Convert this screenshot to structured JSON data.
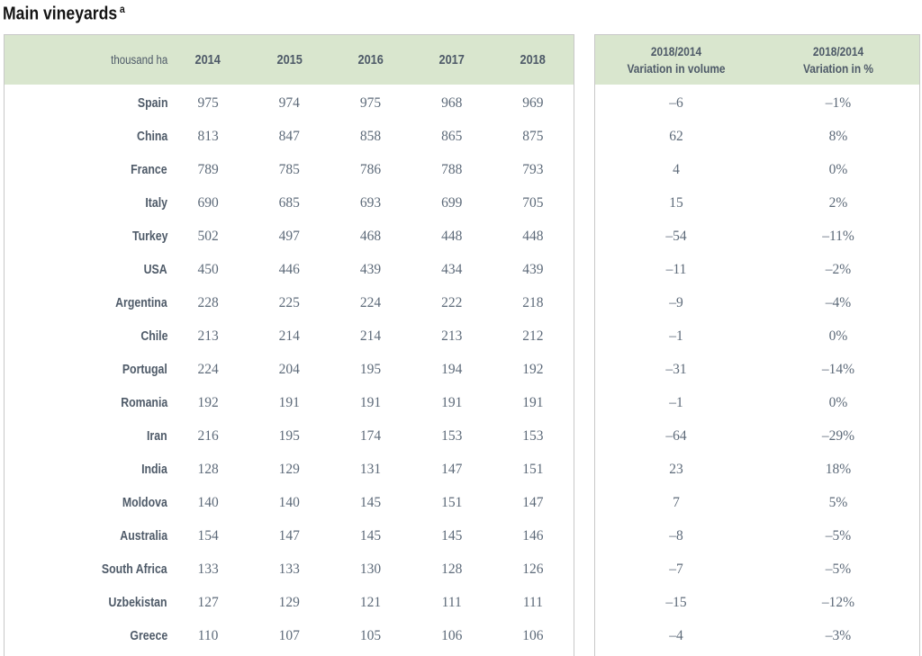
{
  "title": {
    "text": "Main vineyards",
    "superscript": "a"
  },
  "left_table": {
    "unit_label": "thousand ha",
    "years": [
      "2014",
      "2015",
      "2016",
      "2017",
      "2018"
    ]
  },
  "right_table": {
    "volume_header": {
      "line1": "2018/2014",
      "line2": "Variation in volume"
    },
    "pct_header": {
      "line1": "2018/2014",
      "line2": "Variation in %"
    }
  },
  "rows": [
    {
      "country": "Spain",
      "values": [
        975,
        974,
        975,
        968,
        969
      ],
      "var_volume": "–6",
      "var_pct": "–1%"
    },
    {
      "country": "China",
      "values": [
        813,
        847,
        858,
        865,
        875
      ],
      "var_volume": "62",
      "var_pct": "8%"
    },
    {
      "country": "France",
      "values": [
        789,
        785,
        786,
        788,
        793
      ],
      "var_volume": "4",
      "var_pct": "0%"
    },
    {
      "country": "Italy",
      "values": [
        690,
        685,
        693,
        699,
        705
      ],
      "var_volume": "15",
      "var_pct": "2%"
    },
    {
      "country": "Turkey",
      "values": [
        502,
        497,
        468,
        448,
        448
      ],
      "var_volume": "–54",
      "var_pct": "–11%"
    },
    {
      "country": "USA",
      "values": [
        450,
        446,
        439,
        434,
        439
      ],
      "var_volume": "–11",
      "var_pct": "–2%"
    },
    {
      "country": "Argentina",
      "values": [
        228,
        225,
        224,
        222,
        218
      ],
      "var_volume": "–9",
      "var_pct": "–4%"
    },
    {
      "country": "Chile",
      "values": [
        213,
        214,
        214,
        213,
        212
      ],
      "var_volume": "–1",
      "var_pct": "0%"
    },
    {
      "country": "Portugal",
      "values": [
        224,
        204,
        195,
        194,
        192
      ],
      "var_volume": "–31",
      "var_pct": "–14%"
    },
    {
      "country": "Romania",
      "values": [
        192,
        191,
        191,
        191,
        191
      ],
      "var_volume": "–1",
      "var_pct": "0%"
    },
    {
      "country": "Iran",
      "values": [
        216,
        195,
        174,
        153,
        153
      ],
      "var_volume": "–64",
      "var_pct": "–29%"
    },
    {
      "country": "India",
      "values": [
        128,
        129,
        131,
        147,
        151
      ],
      "var_volume": "23",
      "var_pct": "18%"
    },
    {
      "country": "Moldova",
      "values": [
        140,
        140,
        145,
        151,
        147
      ],
      "var_volume": "7",
      "var_pct": "5%"
    },
    {
      "country": "Australia",
      "values": [
        154,
        147,
        145,
        145,
        146
      ],
      "var_volume": "–8",
      "var_pct": "–5%"
    },
    {
      "country": "South Africa",
      "values": [
        133,
        133,
        130,
        128,
        126
      ],
      "var_volume": "–7",
      "var_pct": "–5%"
    },
    {
      "country": "Uzbekistan",
      "values": [
        127,
        129,
        121,
        111,
        111
      ],
      "var_volume": "–15",
      "var_pct": "–12%"
    },
    {
      "country": "Greece",
      "values": [
        110,
        107,
        105,
        106,
        106
      ],
      "var_volume": "–4",
      "var_pct": "–3%"
    }
  ],
  "chart_data": {
    "type": "table",
    "title": "Main vineyards",
    "unit": "thousand ha",
    "columns": [
      "thousand ha",
      "2014",
      "2015",
      "2016",
      "2017",
      "2018",
      "2018/2014 Variation in volume",
      "2018/2014 Variation in %"
    ],
    "categories": [
      "Spain",
      "China",
      "France",
      "Italy",
      "Turkey",
      "USA",
      "Argentina",
      "Chile",
      "Portugal",
      "Romania",
      "Iran",
      "India",
      "Moldova",
      "Australia",
      "South Africa",
      "Uzbekistan",
      "Greece"
    ],
    "series": [
      {
        "name": "2014",
        "values": [
          975,
          813,
          789,
          690,
          502,
          450,
          228,
          213,
          224,
          192,
          216,
          128,
          140,
          154,
          133,
          127,
          110
        ]
      },
      {
        "name": "2015",
        "values": [
          974,
          847,
          785,
          685,
          497,
          446,
          225,
          214,
          204,
          191,
          195,
          129,
          140,
          147,
          133,
          129,
          107
        ]
      },
      {
        "name": "2016",
        "values": [
          975,
          858,
          786,
          693,
          468,
          439,
          224,
          214,
          195,
          191,
          174,
          131,
          145,
          145,
          130,
          121,
          105
        ]
      },
      {
        "name": "2017",
        "values": [
          968,
          865,
          788,
          699,
          448,
          434,
          222,
          213,
          194,
          191,
          153,
          147,
          151,
          145,
          128,
          111,
          106
        ]
      },
      {
        "name": "2018",
        "values": [
          969,
          875,
          793,
          705,
          448,
          439,
          218,
          212,
          192,
          191,
          153,
          151,
          147,
          146,
          126,
          111,
          106
        ]
      },
      {
        "name": "2018/2014 Variation in volume",
        "values": [
          -6,
          62,
          4,
          15,
          -54,
          -11,
          -9,
          -1,
          -31,
          -1,
          -64,
          23,
          7,
          -8,
          -7,
          -15,
          -4
        ]
      },
      {
        "name": "2018/2014 Variation in %",
        "values": [
          -1,
          8,
          0,
          2,
          -11,
          -2,
          -4,
          0,
          -14,
          0,
          -29,
          18,
          5,
          -5,
          -5,
          -12,
          -3
        ]
      }
    ]
  },
  "colors": {
    "header_bg": "#d9e6ce",
    "header_text": "#4e5a68",
    "number_text": "#5d6a79",
    "border": "#c8c8c8",
    "title_text": "#141414"
  }
}
